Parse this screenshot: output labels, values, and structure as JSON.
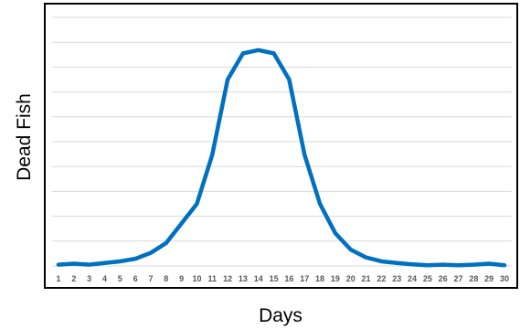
{
  "chart_data": {
    "type": "line",
    "title": "",
    "xlabel": "Days",
    "ylabel": "Dead Fish",
    "x": [
      1,
      2,
      3,
      4,
      5,
      6,
      7,
      8,
      9,
      10,
      11,
      12,
      13,
      14,
      15,
      16,
      17,
      18,
      19,
      20,
      21,
      22,
      23,
      24,
      25,
      26,
      27,
      28,
      29,
      30
    ],
    "tick_labels": [
      "1",
      "2",
      "3",
      "4",
      "5",
      "6",
      "7",
      "8",
      "9",
      "10",
      "11",
      "12",
      "13",
      "14",
      "15",
      "16",
      "17",
      "18",
      "19",
      "20",
      "21",
      "22",
      "23",
      "24",
      "25",
      "26",
      "27",
      "28",
      "29",
      "30"
    ],
    "series": [
      {
        "values": [
          0.2,
          0.35,
          0.2,
          0.45,
          0.7,
          1.1,
          2.0,
          3.5,
          6.5,
          9.5,
          17.0,
          28.5,
          32.5,
          33.0,
          32.5,
          28.5,
          17.0,
          9.5,
          5.0,
          2.5,
          1.3,
          0.7,
          0.45,
          0.25,
          0.1,
          0.2,
          0.1,
          0.2,
          0.35,
          0.1
        ]
      }
    ],
    "ylim": [
      0,
      38
    ],
    "grid": true,
    "gridlines": 10,
    "legend": "none",
    "line_color": "#0070c0",
    "grid_color": "#d9d9d9"
  }
}
